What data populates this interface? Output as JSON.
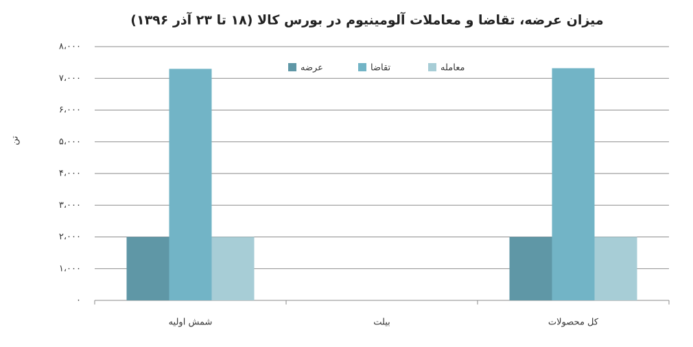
{
  "chart_data": {
    "type": "bar",
    "title": "میزان عرضه، تقاضا و معاملات آلومینیوم در بورس کالا (۱۸ تا ۲۳ آذر ۱۳۹۶)",
    "y_label": "تن",
    "categories": [
      "شمش اولیه",
      "بیلت",
      "کل محصولات"
    ],
    "series": [
      {
        "name": "عرضه",
        "color": "#5f97a6",
        "values": [
          2000,
          0,
          2000
        ]
      },
      {
        "name": "تقاضا",
        "color": "#72b4c6",
        "values": [
          7300,
          0,
          7320
        ]
      },
      {
        "name": "معامله",
        "color": "#a7cdd6",
        "values": [
          2000,
          0,
          2000
        ]
      }
    ],
    "ylim": [
      0,
      8000
    ],
    "yticks": [
      {
        "value": 0,
        "label": "۰"
      },
      {
        "value": 1000,
        "label": "۱،۰۰۰"
      },
      {
        "value": 2000,
        "label": "۲،۰۰۰"
      },
      {
        "value": 3000,
        "label": "۳،۰۰۰"
      },
      {
        "value": 4000,
        "label": "۴،۰۰۰"
      },
      {
        "value": 5000,
        "label": "۵،۰۰۰"
      },
      {
        "value": 6000,
        "label": "۶،۰۰۰"
      },
      {
        "value": 7000,
        "label": "۷،۰۰۰"
      },
      {
        "value": 8000,
        "label": "۸،۰۰۰"
      }
    ],
    "grid": true
  }
}
